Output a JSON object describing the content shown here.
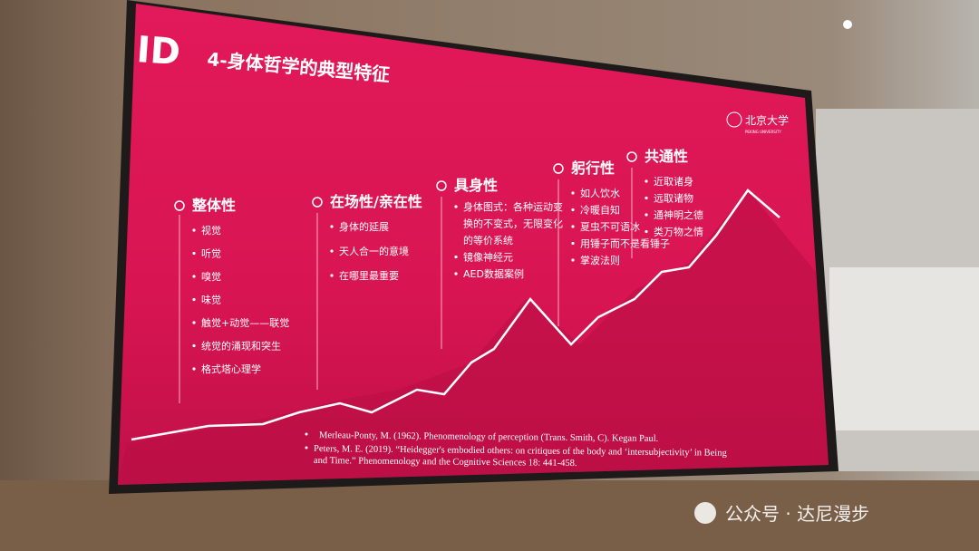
{
  "slide": {
    "logo": "ID",
    "title": "4-身体哲学的典型特征",
    "university": {
      "name": "北京大学",
      "english": "PEKING UNIVERSITY"
    },
    "sections": [
      {
        "heading": "整体性",
        "items": [
          "视觉",
          "听觉",
          "嗅觉",
          "味觉",
          "触觉+动觉——联觉",
          "统觉的涌现和突生",
          "格式塔心理学"
        ]
      },
      {
        "heading": "在场性/亲在性",
        "items": [
          "身体的延展",
          "天人合一的意境",
          "在哪里最重要"
        ]
      },
      {
        "heading": "具身性",
        "items": [
          "身体图式：各种运动变",
          "换的不变式，无限变化",
          "的等价系统",
          "镜像神经元",
          "AED数据案例"
        ]
      },
      {
        "heading": "躬行性",
        "items": [
          "如人饮水",
          "冷暖自知",
          "夏虫不可语冰",
          "用锤子而不是看锤子",
          "掌波法则"
        ]
      },
      {
        "heading": "共通性",
        "items": [
          "近取诸身",
          "远取诸物",
          "通神明之德",
          "类万物之情"
        ]
      }
    ],
    "references": [
      [
        "Merleau-Ponty, M. (1962). Phenomenology of perception (Trans. Smith, C). Kegan Paul."
      ],
      [
        "Peters, M. E. (2019). “Heidegger's embodied others: on critiques of the body and ‘intersubjectivity’ in Being",
        "and Time.” Phenomenology and the Cognitive Sciences 18: 441-458."
      ]
    ]
  },
  "watermark": "公众号 · 达尼漫步"
}
